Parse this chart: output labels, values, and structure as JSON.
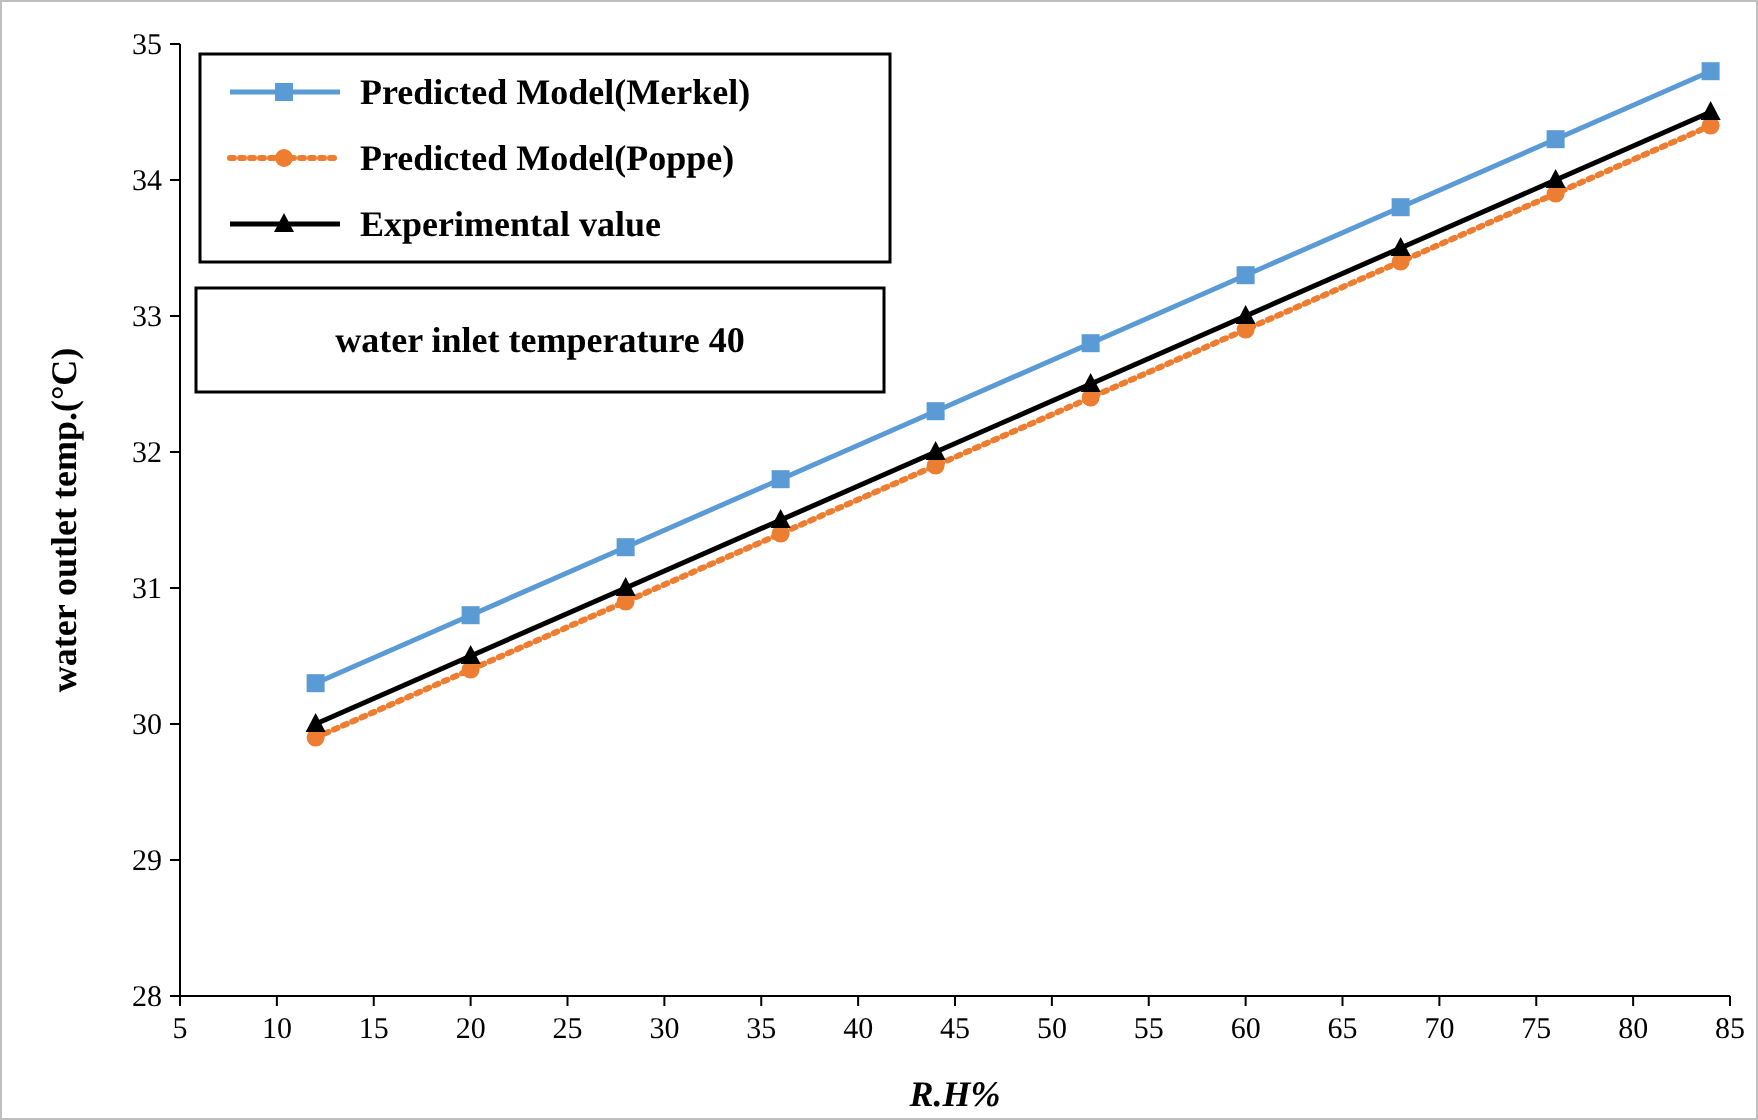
{
  "chart_data": {
    "type": "line",
    "xlabel": "R.H%",
    "ylabel": "water outlet temp.(°C)",
    "annotations": [
      "water inlet temperature 40"
    ],
    "x": [
      12,
      20,
      28,
      36,
      44,
      52,
      60,
      68,
      76,
      84
    ],
    "series": [
      {
        "name": "Predicted Model(Merkel)",
        "color": "#5b9bd5",
        "values": [
          30.3,
          30.8,
          31.3,
          31.8,
          32.3,
          32.8,
          33.3,
          33.8,
          34.3,
          34.8
        ],
        "marker": "square",
        "line_style": "solid"
      },
      {
        "name": "Predicted Model(Poppe)",
        "color": "#ed7d31",
        "values": [
          29.9,
          30.4,
          30.9,
          31.4,
          31.9,
          32.4,
          32.9,
          33.4,
          33.9,
          34.4
        ],
        "marker": "circle",
        "line_style": "dotted"
      },
      {
        "name": "Experimental value",
        "color": "#000000",
        "values": [
          30,
          30.5,
          31,
          31.5,
          32,
          32.5,
          33,
          33.5,
          34,
          34.5
        ],
        "marker": "triangle",
        "line_style": "solid"
      }
    ],
    "xlim": [
      5,
      85
    ],
    "xticks": [
      5,
      10,
      15,
      20,
      25,
      30,
      35,
      40,
      45,
      50,
      55,
      60,
      65,
      70,
      75,
      80,
      85
    ],
    "ylim": [
      28,
      35
    ],
    "yticks": [
      28,
      29,
      30,
      31,
      32,
      33,
      34,
      35
    ],
    "grid": false,
    "legend": "top left"
  }
}
